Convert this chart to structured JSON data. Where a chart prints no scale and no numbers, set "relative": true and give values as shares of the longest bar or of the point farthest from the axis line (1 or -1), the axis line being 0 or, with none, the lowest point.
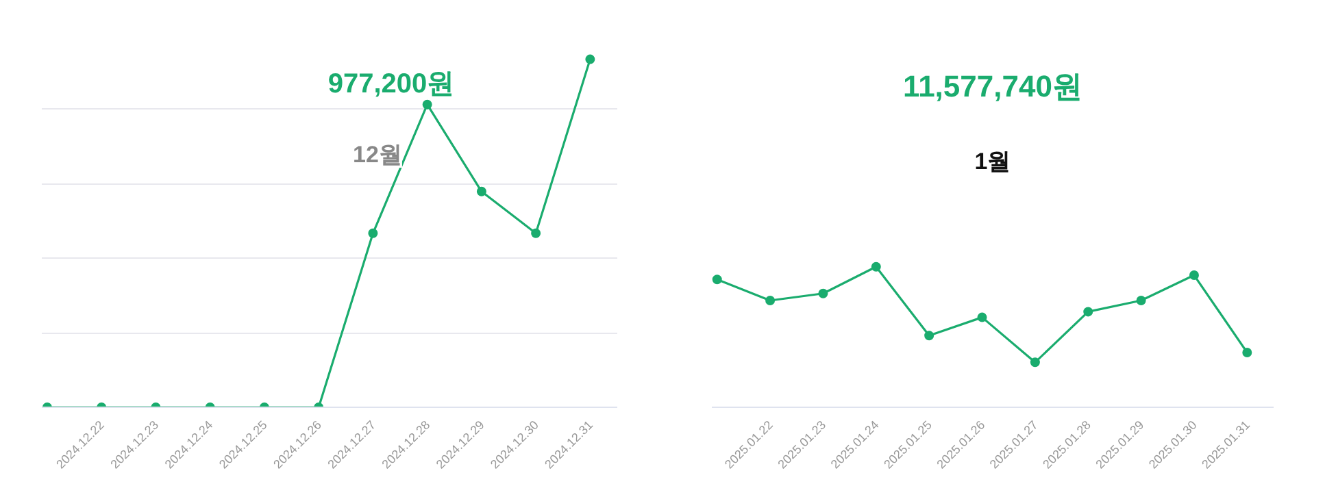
{
  "chart_data": [
    {
      "type": "line",
      "relative": true,
      "categories": [
        null,
        "2024.12.22",
        "2024.12.23",
        "2024.12.24",
        "2024.12.25",
        "2024.12.26",
        "2024.12.27",
        "2024.12.28",
        "2024.12.29",
        "2024.12.30",
        "2024.12.31"
      ],
      "series": [
        {
          "color": "#1aac6e",
          "values": [
            0,
            0,
            0,
            0,
            0,
            0,
            0.5,
            0.87,
            0.62,
            0.5,
            1
          ]
        }
      ],
      "annotations": [
        "977,200원",
        "12월"
      ],
      "grid": "y",
      "marker": "circle",
      "line_style": "solid"
    },
    {
      "type": "line",
      "relative": true,
      "categories": [
        null,
        "2025.01.22",
        "2025.01.23",
        "2025.01.24",
        "2025.01.25",
        "2025.01.26",
        "2025.01.27",
        "2025.01.28",
        "2025.01.29",
        "2025.01.30",
        "2025.01.31"
      ],
      "series": [
        {
          "color": "#1aac6e",
          "values": [
            0.91,
            0.76,
            0.81,
            1,
            0.51,
            0.64,
            0.32,
            0.68,
            0.76,
            0.94,
            0.39
          ]
        }
      ],
      "annotations": [
        "11,577,740원",
        "1월"
      ],
      "marker": "circle",
      "line_style": "solid"
    }
  ]
}
